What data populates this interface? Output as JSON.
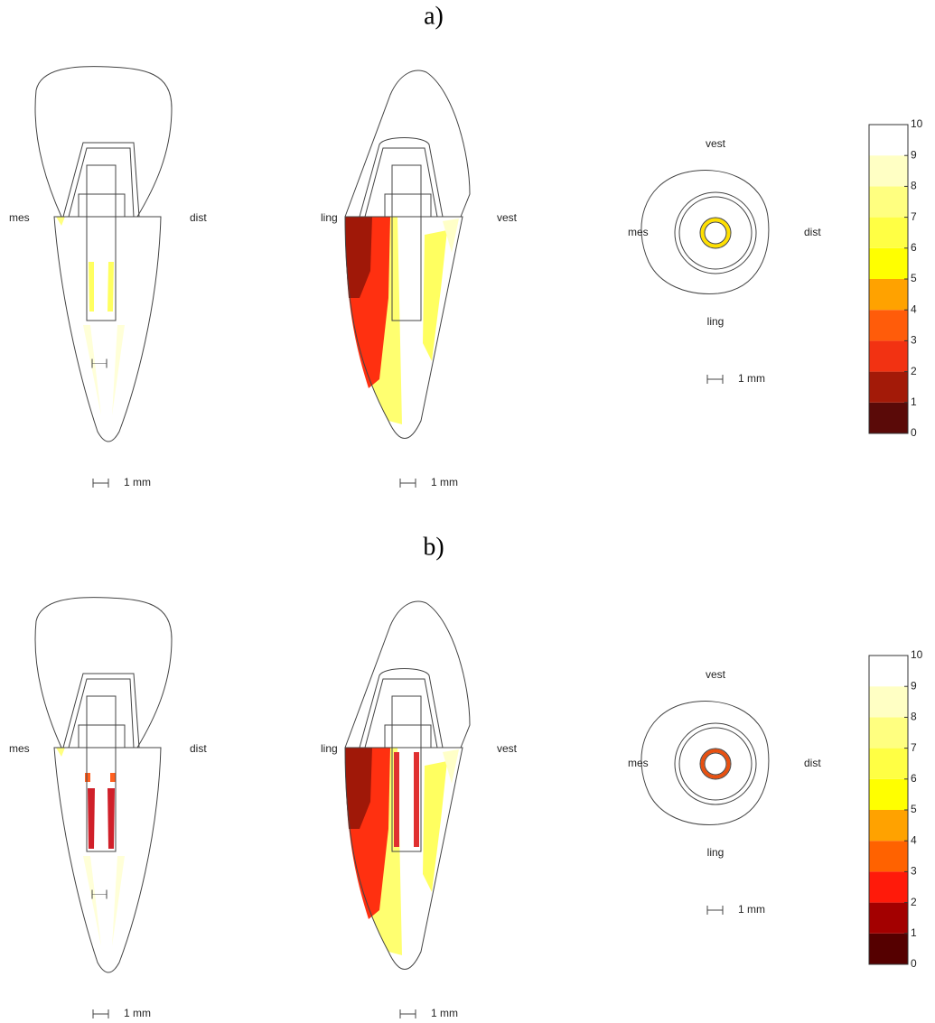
{
  "panels": [
    {
      "label": "a)",
      "views": [
        {
          "left": "mes",
          "right": "dist",
          "scale": "1 mm"
        },
        {
          "left": "ling",
          "right": "vest",
          "scale": "1 mm"
        },
        {
          "top": "vest",
          "left": "mes",
          "right": "dist",
          "bottom": "ling",
          "scale": "1 mm"
        }
      ],
      "colorbar": {
        "ticks": [
          0,
          1,
          2,
          3,
          4,
          5,
          6,
          7,
          8,
          9,
          10
        ],
        "colors": [
          "#5a0a08",
          "#a31a08",
          "#f23212",
          "#ff5c0a",
          "#ffa200",
          "#ffff00",
          "#ffff44",
          "#ffff80",
          "#ffffc4",
          "#ffffff"
        ]
      }
    },
    {
      "label": "b)",
      "views": [
        {
          "left": "mes",
          "right": "dist",
          "scale": "1 mm"
        },
        {
          "left": "ling",
          "right": "vest",
          "scale": "1 mm"
        },
        {
          "top": "vest",
          "left": "mes",
          "right": "dist",
          "bottom": "ling",
          "scale": "1 mm"
        }
      ],
      "colorbar": {
        "ticks": [
          0,
          1,
          2,
          3,
          4,
          5,
          6,
          7,
          8,
          9,
          10
        ],
        "colors": [
          "#550000",
          "#a30000",
          "#ff1a0a",
          "#ff6200",
          "#ffa200",
          "#ffff00",
          "#ffff44",
          "#ffff80",
          "#ffffc4",
          "#ffffff"
        ]
      }
    }
  ]
}
